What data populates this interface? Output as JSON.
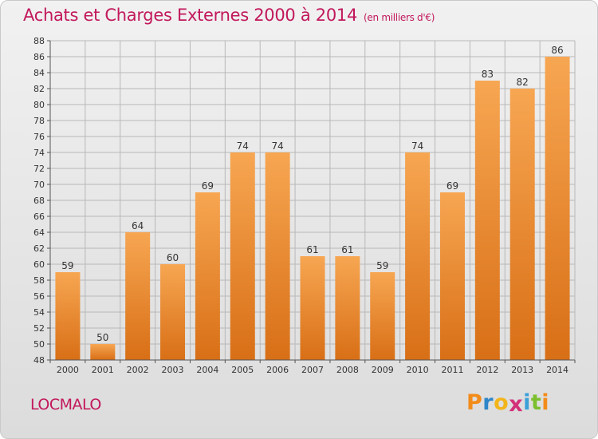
{
  "chart_data": {
    "type": "bar",
    "title": "Achats et Charges Externes 2000 à 2014",
    "subtitle": "(en milliers d'€)",
    "categories": [
      "2000",
      "2001",
      "2002",
      "2003",
      "2004",
      "2005",
      "2006",
      "2007",
      "2008",
      "2009",
      "2010",
      "2011",
      "2012",
      "2013",
      "2014"
    ],
    "values": [
      59,
      50,
      64,
      60,
      69,
      74,
      74,
      61,
      61,
      59,
      74,
      69,
      83,
      82,
      86
    ],
    "ylim": [
      48,
      88
    ],
    "yticks": [
      48,
      50,
      52,
      54,
      56,
      58,
      60,
      62,
      64,
      66,
      68,
      70,
      72,
      74,
      76,
      78,
      80,
      82,
      84,
      86,
      88
    ],
    "grid": true,
    "bar_colors": {
      "top": "#f7a652",
      "bottom": "#d86f16"
    }
  },
  "location": "LOCMALO",
  "brand": {
    "letters": [
      "P",
      "r",
      "o",
      "x",
      "i",
      "t",
      "i"
    ],
    "colors": [
      "#f28c1a",
      "#2e86c9",
      "#f2b51a",
      "#d3317a",
      "#3aa0d8",
      "#7cbf2e",
      "#f28c1a"
    ]
  },
  "colors": {
    "title": "#c2185b",
    "grid": "#b8b8b8",
    "axis": "#555555",
    "label": "#333333"
  }
}
